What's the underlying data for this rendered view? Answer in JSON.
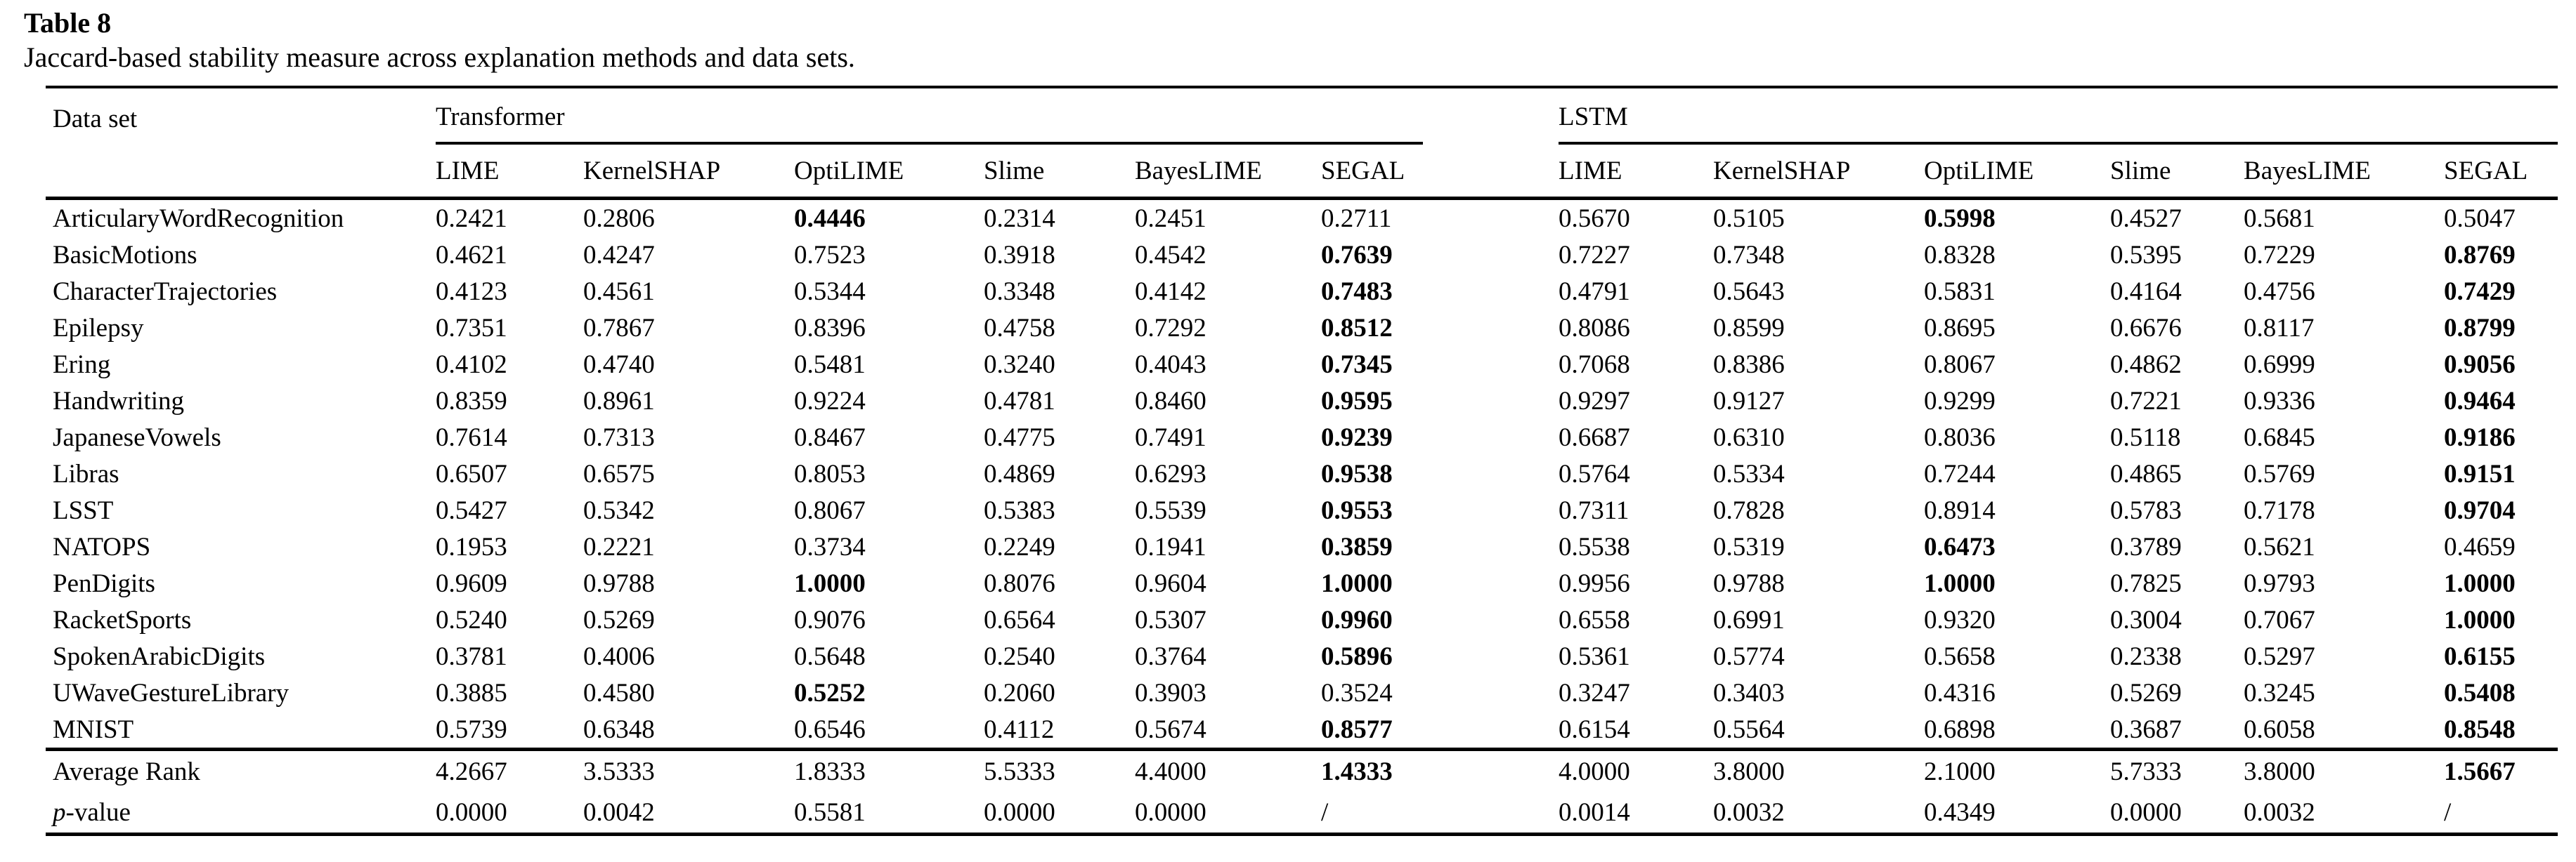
{
  "table_label": "Table 8",
  "caption": "Jaccard-based stability measure across explanation methods and data sets.",
  "header": {
    "dataset_column": "Data set",
    "groups": [
      {
        "label": "Transformer",
        "methods": [
          "LIME",
          "KernelSHAP",
          "OptiLIME",
          "Slime",
          "BayesLIME",
          "SEGAL"
        ]
      },
      {
        "label": "LSTM",
        "methods": [
          "LIME",
          "KernelSHAP",
          "OptiLIME",
          "Slime",
          "BayesLIME",
          "SEGAL"
        ]
      }
    ]
  },
  "rows": [
    {
      "dataset": "ArticularyWordRecognition",
      "values": [
        "0.2421",
        "0.2806",
        "0.4446",
        "0.2314",
        "0.2451",
        "0.2711",
        "0.5670",
        "0.5105",
        "0.5998",
        "0.4527",
        "0.5681",
        "0.5047"
      ],
      "bold": [
        2,
        8
      ]
    },
    {
      "dataset": "BasicMotions",
      "values": [
        "0.4621",
        "0.4247",
        "0.7523",
        "0.3918",
        "0.4542",
        "0.7639",
        "0.7227",
        "0.7348",
        "0.8328",
        "0.5395",
        "0.7229",
        "0.8769"
      ],
      "bold": [
        5,
        11
      ]
    },
    {
      "dataset": "CharacterTrajectories",
      "values": [
        "0.4123",
        "0.4561",
        "0.5344",
        "0.3348",
        "0.4142",
        "0.7483",
        "0.4791",
        "0.5643",
        "0.5831",
        "0.4164",
        "0.4756",
        "0.7429"
      ],
      "bold": [
        5,
        11
      ]
    },
    {
      "dataset": "Epilepsy",
      "values": [
        "0.7351",
        "0.7867",
        "0.8396",
        "0.4758",
        "0.7292",
        "0.8512",
        "0.8086",
        "0.8599",
        "0.8695",
        "0.6676",
        "0.8117",
        "0.8799"
      ],
      "bold": [
        5,
        11
      ]
    },
    {
      "dataset": "Ering",
      "values": [
        "0.4102",
        "0.4740",
        "0.5481",
        "0.3240",
        "0.4043",
        "0.7345",
        "0.7068",
        "0.8386",
        "0.8067",
        "0.4862",
        "0.6999",
        "0.9056"
      ],
      "bold": [
        5,
        11
      ]
    },
    {
      "dataset": "Handwriting",
      "values": [
        "0.8359",
        "0.8961",
        "0.9224",
        "0.4781",
        "0.8460",
        "0.9595",
        "0.9297",
        "0.9127",
        "0.9299",
        "0.7221",
        "0.9336",
        "0.9464"
      ],
      "bold": [
        5,
        11
      ]
    },
    {
      "dataset": "JapaneseVowels",
      "values": [
        "0.7614",
        "0.7313",
        "0.8467",
        "0.4775",
        "0.7491",
        "0.9239",
        "0.6687",
        "0.6310",
        "0.8036",
        "0.5118",
        "0.6845",
        "0.9186"
      ],
      "bold": [
        5,
        11
      ]
    },
    {
      "dataset": "Libras",
      "values": [
        "0.6507",
        "0.6575",
        "0.8053",
        "0.4869",
        "0.6293",
        "0.9538",
        "0.5764",
        "0.5334",
        "0.7244",
        "0.4865",
        "0.5769",
        "0.9151"
      ],
      "bold": [
        5,
        11
      ]
    },
    {
      "dataset": "LSST",
      "values": [
        "0.5427",
        "0.5342",
        "0.8067",
        "0.5383",
        "0.5539",
        "0.9553",
        "0.7311",
        "0.7828",
        "0.8914",
        "0.5783",
        "0.7178",
        "0.9704"
      ],
      "bold": [
        5,
        11
      ]
    },
    {
      "dataset": "NATOPS",
      "values": [
        "0.1953",
        "0.2221",
        "0.3734",
        "0.2249",
        "0.1941",
        "0.3859",
        "0.5538",
        "0.5319",
        "0.6473",
        "0.3789",
        "0.5621",
        "0.4659"
      ],
      "bold": [
        5,
        8
      ]
    },
    {
      "dataset": "PenDigits",
      "values": [
        "0.9609",
        "0.9788",
        "1.0000",
        "0.8076",
        "0.9604",
        "1.0000",
        "0.9956",
        "0.9788",
        "1.0000",
        "0.7825",
        "0.9793",
        "1.0000"
      ],
      "bold": [
        2,
        5,
        8,
        11
      ]
    },
    {
      "dataset": "RacketSports",
      "values": [
        "0.5240",
        "0.5269",
        "0.9076",
        "0.6564",
        "0.5307",
        "0.9960",
        "0.6558",
        "0.6991",
        "0.9320",
        "0.3004",
        "0.7067",
        "1.0000"
      ],
      "bold": [
        5,
        11
      ]
    },
    {
      "dataset": "SpokenArabicDigits",
      "values": [
        "0.3781",
        "0.4006",
        "0.5648",
        "0.2540",
        "0.3764",
        "0.5896",
        "0.5361",
        "0.5774",
        "0.5658",
        "0.2338",
        "0.5297",
        "0.6155"
      ],
      "bold": [
        5,
        11
      ]
    },
    {
      "dataset": "UWaveGestureLibrary",
      "values": [
        "0.3885",
        "0.4580",
        "0.5252",
        "0.2060",
        "0.3903",
        "0.3524",
        "0.3247",
        "0.3403",
        "0.4316",
        "0.5269",
        "0.3245",
        "0.5408"
      ],
      "bold": [
        2,
        11
      ]
    },
    {
      "dataset": "MNIST",
      "values": [
        "0.5739",
        "0.6348",
        "0.6546",
        "0.4112",
        "0.5674",
        "0.8577",
        "0.6154",
        "0.5564",
        "0.6898",
        "0.3687",
        "0.6058",
        "0.8548"
      ],
      "bold": [
        5,
        11
      ]
    }
  ],
  "summary_rows": [
    {
      "label_italic": "",
      "label": "Average Rank",
      "values": [
        "4.2667",
        "3.5333",
        "1.8333",
        "5.5333",
        "4.4000",
        "1.4333",
        "4.0000",
        "3.8000",
        "2.1000",
        "5.7333",
        "3.8000",
        "1.5667"
      ],
      "bold": [
        5,
        11
      ]
    },
    {
      "label_italic": "p",
      "label": "-value",
      "values": [
        "0.0000",
        "0.0042",
        "0.5581",
        "0.0000",
        "0.0000",
        "/",
        "0.0014",
        "0.0032",
        "0.4349",
        "0.0000",
        "0.0032",
        "/"
      ],
      "bold": []
    }
  ]
}
